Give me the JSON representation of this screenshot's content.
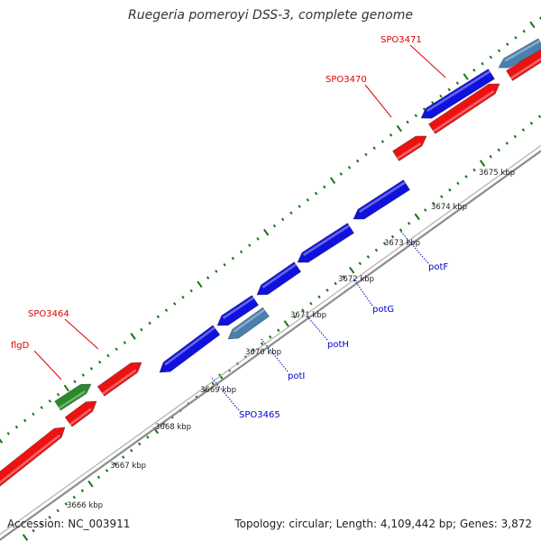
{
  "title": "Ruegeria pomeroyi DSS-3, complete genome",
  "footer": {
    "accession": "Accession: NC_003911",
    "summary": "Topology: circular; Length: 4,109,442 bp; Genes: 3,872"
  },
  "colors": {
    "forward_gene": "#ee1111",
    "reverse_gene": "#1111dd",
    "rna_gene": "#4a7fb0",
    "other_gene": "#2a8a2a",
    "forward_label": "#dd0000",
    "reverse_label": "#0000cc",
    "tick": "#117711",
    "backbone": "#8c8c8c"
  },
  "scale_labels": [
    "3666 kbp",
    "3667 kbp",
    "3668 kbp",
    "3669 kbp",
    "3670 kbp",
    "3671 kbp",
    "3672 kbp",
    "3673 kbp",
    "3674 kbp",
    "3675 kbp"
  ],
  "gene_labels": {
    "forward": [
      "SPO3471",
      "SPO3470",
      "SPO3464",
      "flgD"
    ],
    "reverse": [
      "potF",
      "potG",
      "potH",
      "potI",
      "SPO3465"
    ]
  }
}
